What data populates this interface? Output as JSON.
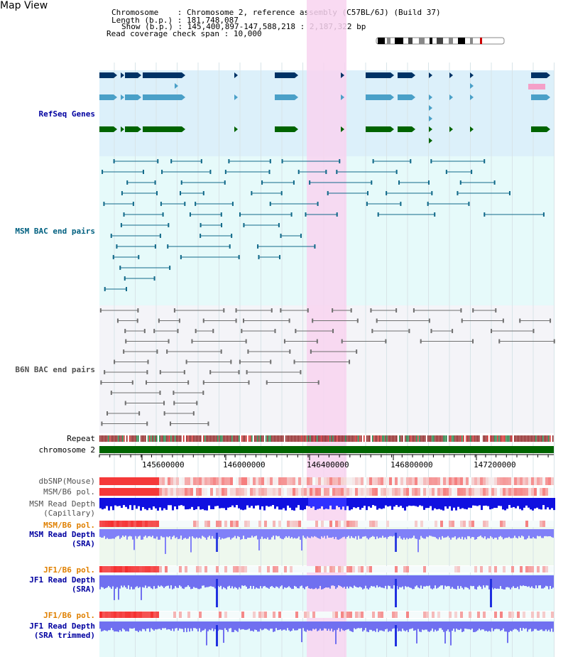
{
  "header": {
    "title": "Map View",
    "chromosome_key": "Chromosome",
    "chromosome_val": "Chromosome 2, reference assembly (C57BL/6J) (Build 37)",
    "length_key": "Length (b.p.)",
    "length_val": "181,748,087",
    "show_key": "Show (b.p.)",
    "show_val": "145,400,897-147,588,218 : 2,187,322 bp",
    "coverage_key": "Read coverage check span",
    "coverage_val": "10,000"
  },
  "tracks": {
    "refseq": "RefSeq Genes",
    "msm_bac": "MSM BAC end pairs",
    "b6n_bac": "B6N BAC end pairs",
    "repeat": "Repeat",
    "chromosome": "chromosome 2",
    "dbsnp": "dbSNP(Mouse)",
    "msm_pol": "MSM/B6 pol.",
    "msm_depth_cap": "MSM Read Depth\n(Capillary)",
    "msm_pol_2": "MSM/B6 pol.",
    "msm_depth_sra": "MSM Read Depth\n(SRA)",
    "jf1_pol": "JF1/B6 pol.",
    "jf1_depth_sra": "JF1 Read Depth\n(SRA)",
    "jf1_pol_2": "JF1/B6 pol.",
    "jf1_depth_trim": "JF1 Read Depth\n(SRA trimmed)"
  },
  "ruler": {
    "ticks": [
      "145600000",
      "146000000",
      "146400000",
      "146800000",
      "147200000"
    ]
  },
  "colors": {
    "refseq_bg": "#dcf0fa",
    "msm_bg": "#e6fafa",
    "b6n_bg": "#f4f4f8",
    "highlight": "#f8d4f0",
    "chrom_bar": "#006400",
    "refseq_label": "#0000a0",
    "msm_label": "#006080",
    "b6n_label": "#505050",
    "depth_label": "#0000a0",
    "pol_label": "#e08000"
  }
}
